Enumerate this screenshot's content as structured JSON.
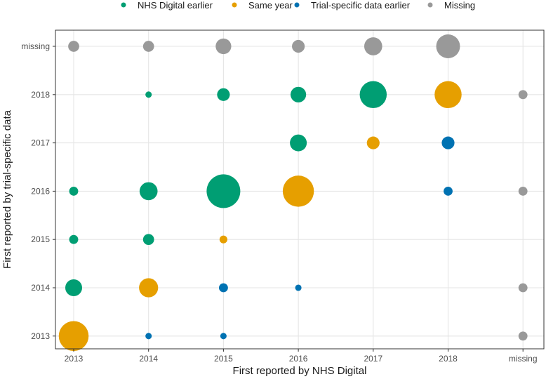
{
  "chart_data": {
    "type": "scatter",
    "subtype": "bubble",
    "xlabel": "First reported by NHS Digital",
    "ylabel": "First reported by trial-specific data",
    "x_categories": [
      "2013",
      "2014",
      "2015",
      "2016",
      "2017",
      "2018",
      "missing"
    ],
    "y_categories": [
      "2013",
      "2014",
      "2015",
      "2016",
      "2017",
      "2018",
      "missing"
    ],
    "legend_position": "top",
    "legend": [
      {
        "key": "nhs",
        "label": "NHS Digital earlier",
        "color": "#009E73"
      },
      {
        "key": "same",
        "label": "Same year",
        "color": "#E69F00"
      },
      {
        "key": "trial",
        "label": "Trial-specific data earlier",
        "color": "#0072B2"
      },
      {
        "key": "missing",
        "label": "Missing",
        "color": "#999999"
      }
    ],
    "points": [
      {
        "x": "2013",
        "y": "missing",
        "group": "missing",
        "size": 3
      },
      {
        "x": "2014",
        "y": "missing",
        "group": "missing",
        "size": 3
      },
      {
        "x": "2015",
        "y": "missing",
        "group": "missing",
        "size": 6
      },
      {
        "x": "2016",
        "y": "missing",
        "group": "missing",
        "size": 4
      },
      {
        "x": "2017",
        "y": "missing",
        "group": "missing",
        "size": 8
      },
      {
        "x": "2018",
        "y": "missing",
        "group": "missing",
        "size": 14
      },
      {
        "x": "2014",
        "y": "2018",
        "group": "nhs",
        "size": 1
      },
      {
        "x": "2015",
        "y": "2018",
        "group": "nhs",
        "size": 4
      },
      {
        "x": "2016",
        "y": "2018",
        "group": "nhs",
        "size": 6
      },
      {
        "x": "2017",
        "y": "2018",
        "group": "nhs",
        "size": 18
      },
      {
        "x": "2018",
        "y": "2018",
        "group": "same",
        "size": 18
      },
      {
        "x": "missing",
        "y": "2018",
        "group": "missing",
        "size": 2
      },
      {
        "x": "2016",
        "y": "2017",
        "group": "nhs",
        "size": 7
      },
      {
        "x": "2017",
        "y": "2017",
        "group": "same",
        "size": 4
      },
      {
        "x": "2018",
        "y": "2017",
        "group": "trial",
        "size": 4
      },
      {
        "x": "2013",
        "y": "2016",
        "group": "nhs",
        "size": 2
      },
      {
        "x": "2014",
        "y": "2016",
        "group": "nhs",
        "size": 8
      },
      {
        "x": "2015",
        "y": "2016",
        "group": "nhs",
        "size": 28
      },
      {
        "x": "2016",
        "y": "2016",
        "group": "same",
        "size": 24
      },
      {
        "x": "2018",
        "y": "2016",
        "group": "trial",
        "size": 2
      },
      {
        "x": "missing",
        "y": "2016",
        "group": "missing",
        "size": 2
      },
      {
        "x": "2013",
        "y": "2015",
        "group": "nhs",
        "size": 2
      },
      {
        "x": "2014",
        "y": "2015",
        "group": "nhs",
        "size": 3
      },
      {
        "x": "2015",
        "y": "2015",
        "group": "same",
        "size": 1.5
      },
      {
        "x": "2013",
        "y": "2014",
        "group": "nhs",
        "size": 7
      },
      {
        "x": "2014",
        "y": "2014",
        "group": "same",
        "size": 9
      },
      {
        "x": "2015",
        "y": "2014",
        "group": "trial",
        "size": 2
      },
      {
        "x": "2016",
        "y": "2014",
        "group": "trial",
        "size": 1
      },
      {
        "x": "missing",
        "y": "2014",
        "group": "missing",
        "size": 2
      },
      {
        "x": "2013",
        "y": "2013",
        "group": "same",
        "size": 22
      },
      {
        "x": "2014",
        "y": "2013",
        "group": "trial",
        "size": 1
      },
      {
        "x": "2015",
        "y": "2013",
        "group": "trial",
        "size": 1
      },
      {
        "x": "missing",
        "y": "2013",
        "group": "missing",
        "size": 2
      }
    ]
  }
}
